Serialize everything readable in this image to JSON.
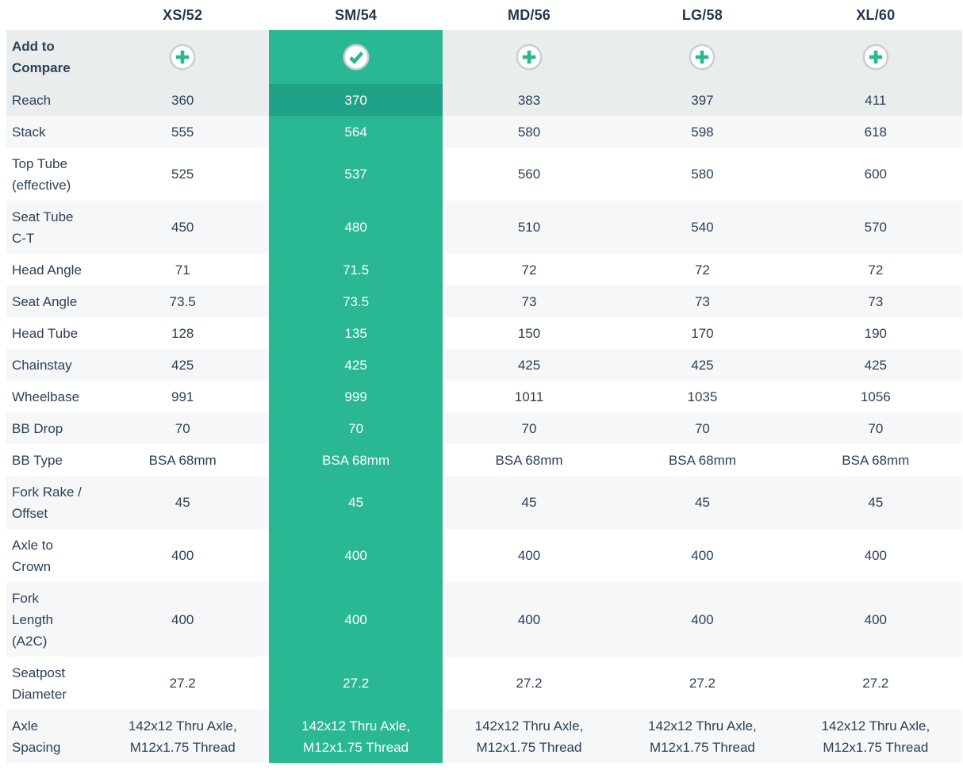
{
  "header": {
    "columns": [
      "XS/52",
      "SM/54",
      "MD/56",
      "LG/58",
      "XL/60"
    ],
    "selected_index": 1,
    "selected_column": "SM/54"
  },
  "compare_row": {
    "label": "Add to\nCompare",
    "add_icon": "plus-icon",
    "selected_icon": "check-icon"
  },
  "rows": [
    {
      "label": "Reach",
      "values": [
        "360",
        "370",
        "383",
        "397",
        "411"
      ],
      "highlighted": true
    },
    {
      "label": "Stack",
      "values": [
        "555",
        "564",
        "580",
        "598",
        "618"
      ]
    },
    {
      "label": "Top Tube\n(effective)",
      "values": [
        "525",
        "537",
        "560",
        "580",
        "600"
      ]
    },
    {
      "label": "Seat Tube\nC-T",
      "values": [
        "450",
        "480",
        "510",
        "540",
        "570"
      ]
    },
    {
      "label": "Head Angle",
      "values": [
        "71",
        "71.5",
        "72",
        "72",
        "72"
      ]
    },
    {
      "label": "Seat Angle",
      "values": [
        "73.5",
        "73.5",
        "73",
        "73",
        "73"
      ]
    },
    {
      "label": "Head Tube",
      "values": [
        "128",
        "135",
        "150",
        "170",
        "190"
      ]
    },
    {
      "label": "Chainstay",
      "values": [
        "425",
        "425",
        "425",
        "425",
        "425"
      ]
    },
    {
      "label": "Wheelbase",
      "values": [
        "991",
        "999",
        "1011",
        "1035",
        "1056"
      ]
    },
    {
      "label": "BB Drop",
      "values": [
        "70",
        "70",
        "70",
        "70",
        "70"
      ]
    },
    {
      "label": "BB Type",
      "values": [
        "BSA 68mm",
        "BSA 68mm",
        "BSA 68mm",
        "BSA 68mm",
        "BSA 68mm"
      ]
    },
    {
      "label": "Fork Rake /\nOffset",
      "values": [
        "45",
        "45",
        "45",
        "45",
        "45"
      ]
    },
    {
      "label": "Axle to\nCrown",
      "values": [
        "400",
        "400",
        "400",
        "400",
        "400"
      ]
    },
    {
      "label": "Fork\nLength\n(A2C)",
      "values": [
        "400",
        "400",
        "400",
        "400",
        "400"
      ]
    },
    {
      "label": "Seatpost\nDiameter",
      "values": [
        "27.2",
        "27.2",
        "27.2",
        "27.2",
        "27.2"
      ]
    },
    {
      "label": "Axle\nSpacing",
      "values": [
        "142x12 Thru Axle,\nM12x1.75 Thread",
        "142x12 Thru Axle,\nM12x1.75 Thread",
        "142x12 Thru Axle,\nM12x1.75 Thread",
        "142x12 Thru Axle,\nM12x1.75 Thread",
        "142x12 Thru Axle,\nM12x1.75 Thread"
      ]
    }
  ],
  "colors": {
    "selected_column": "#2ab793",
    "selected_highlight_cell": "#1fa287",
    "highlight_row": "#e9edee",
    "alt_row": "#f5f7f8",
    "white_row": "#ffffff",
    "text": "#2d4055",
    "header_text": "#24374a",
    "icon_ring": "#c9cfd4",
    "icon_fill": "#ffffff",
    "selected_text": "#ffffff"
  }
}
